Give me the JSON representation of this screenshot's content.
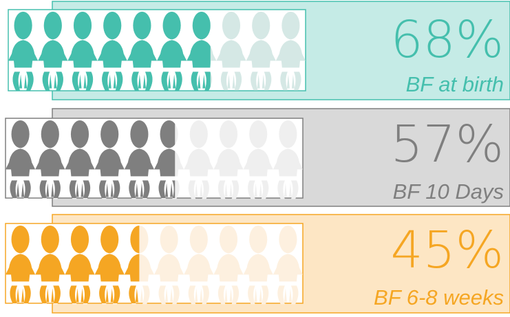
{
  "chart_data": {
    "type": "pictograph",
    "categories": [
      "BF at birth",
      "BF 10 Days",
      "BF 6-8 weeks"
    ],
    "values": [
      68,
      57,
      45
    ],
    "value_labels": [
      "68%",
      "57%",
      "45%"
    ],
    "colors": [
      "#45bfad",
      "#7f7f7f",
      "#f5a623"
    ],
    "faded_colors": [
      "#d5e8e5",
      "#efefef",
      "#fdf0df"
    ],
    "background_colors": [
      "#c5ebe6",
      "#d9d9d9",
      "#fde6c4"
    ],
    "xlim": [
      0,
      100
    ]
  }
}
